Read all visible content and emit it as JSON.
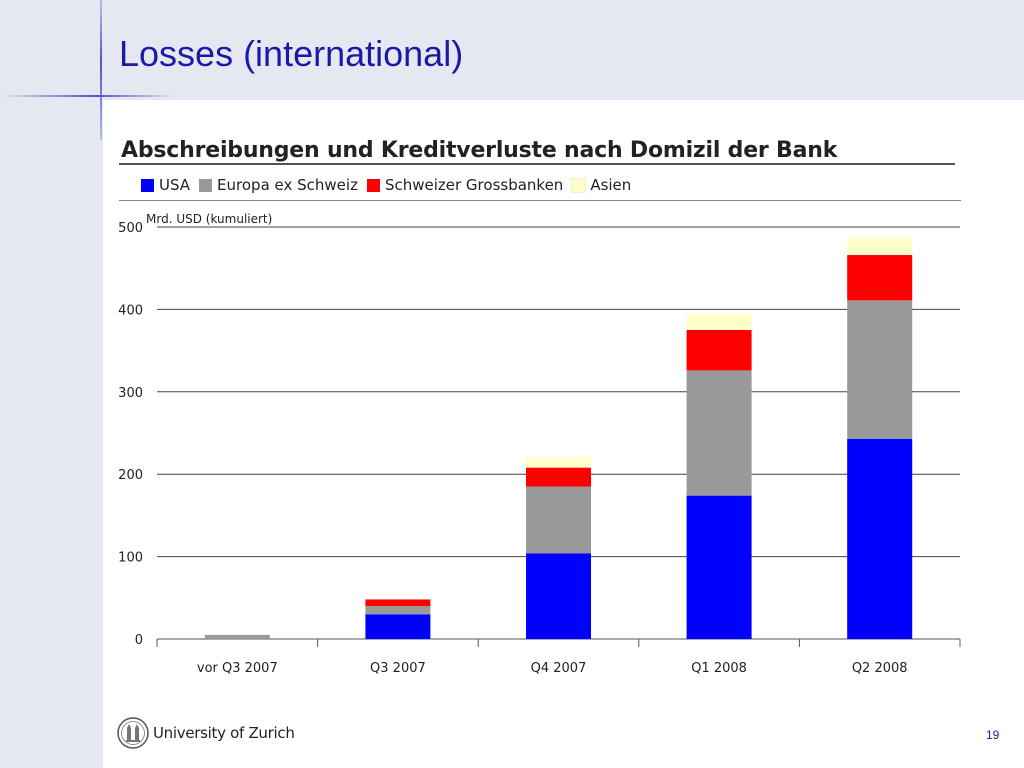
{
  "slide": {
    "title": "Losses (international)",
    "page_number": "19"
  },
  "footer": {
    "institution": "University of Zurich",
    "logo_icon": "university-seal-icon"
  },
  "colors": {
    "title": "#1a1aa6",
    "accent_line": "#4b58c8",
    "background": "#e6e8f1"
  },
  "chart_data": {
    "type": "bar",
    "stacked": true,
    "title": "Abschreibungen und Kreditverluste nach Domizil der Bank",
    "ylabel": "Mrd. USD (kumuliert)",
    "xlabel": "",
    "categories": [
      "vor Q3 2007",
      "Q3 2007",
      "Q4 2007",
      "Q1 2008",
      "Q2 2008"
    ],
    "ylim": [
      0,
      500
    ],
    "yticks": [
      0,
      100,
      200,
      300,
      400,
      500
    ],
    "grid": true,
    "legend_position": "top",
    "series": [
      {
        "name": "USA",
        "color": "#0000ff",
        "values": [
          0,
          30,
          104,
          174,
          243
        ]
      },
      {
        "name": "Europa ex Schweiz",
        "color": "#999999",
        "values": [
          5,
          10,
          81,
          152,
          168
        ]
      },
      {
        "name": "Schweizer Grossbanken",
        "color": "#ff0000",
        "values": [
          0,
          8,
          23,
          49,
          55
        ]
      },
      {
        "name": "Asien",
        "color": "#ffffcc",
        "values": [
          0,
          0,
          13,
          20,
          22
        ]
      }
    ]
  }
}
